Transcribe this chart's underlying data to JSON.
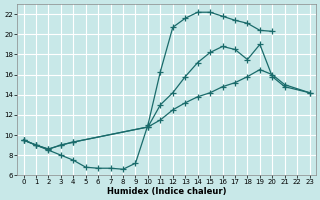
{
  "xlabel": "Humidex (Indice chaleur)",
  "bg_color": "#c8e8e8",
  "grid_color": "#ffffff",
  "line_color": "#1a6b6b",
  "xlim": [
    -0.5,
    23.5
  ],
  "ylim": [
    6,
    23
  ],
  "yticks": [
    6,
    8,
    10,
    12,
    14,
    16,
    18,
    20,
    22
  ],
  "xticks": [
    0,
    1,
    2,
    3,
    4,
    5,
    6,
    7,
    8,
    9,
    10,
    11,
    12,
    13,
    14,
    15,
    16,
    17,
    18,
    19,
    20,
    21,
    22,
    23
  ],
  "c1x": [
    0,
    1,
    2,
    3,
    4,
    5,
    6,
    7,
    8,
    9,
    10,
    11,
    12,
    13,
    14,
    15,
    16,
    17,
    18,
    19,
    20
  ],
  "c1y": [
    9.5,
    9.0,
    8.5,
    8.0,
    7.5,
    6.8,
    6.7,
    6.7,
    6.6,
    7.2,
    11.0,
    16.3,
    20.7,
    21.6,
    22.2,
    22.2,
    21.8,
    21.4,
    21.1,
    20.4,
    20.3
  ],
  "c2x": [
    0,
    1,
    2,
    3,
    4,
    10,
    11,
    12,
    13,
    14,
    15,
    16,
    17,
    18,
    19,
    20,
    21,
    23
  ],
  "c2y": [
    9.5,
    9.0,
    8.6,
    9.0,
    9.3,
    10.8,
    13.0,
    14.2,
    15.8,
    17.2,
    18.2,
    18.8,
    18.5,
    17.5,
    19.0,
    15.8,
    14.8,
    14.2
  ],
  "c3x": [
    0,
    1,
    2,
    3,
    4,
    10,
    11,
    12,
    13,
    14,
    15,
    16,
    17,
    18,
    19,
    20,
    21,
    23
  ],
  "c3y": [
    9.5,
    9.0,
    8.6,
    9.0,
    9.3,
    10.8,
    11.5,
    12.5,
    13.2,
    13.8,
    14.2,
    14.8,
    15.2,
    15.8,
    16.5,
    16.0,
    15.0,
    14.2
  ]
}
